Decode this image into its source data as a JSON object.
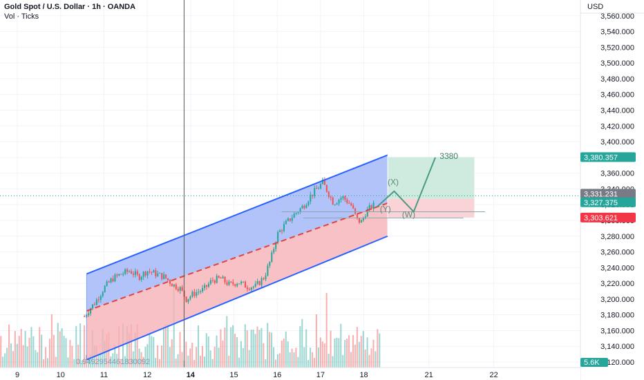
{
  "header": {
    "title": "Gold Spot / U.S. Dollar · 1h · OANDA",
    "subtitle": "Vol · Ticks"
  },
  "axis": {
    "currency": "USD"
  },
  "colors": {
    "up": "#26a69a",
    "down": "#ef5350",
    "channel_line": "#2962ff",
    "channel_fill_upper": "#9fb4f9",
    "channel_fill_lower": "#f6b1b7",
    "midline": "#e0433f",
    "target_fill": "#cfeadf",
    "stop_fill": "#f9d3d5",
    "projection": "#4a9a84",
    "tag_green": "#26a69a",
    "tag_gray": "#787b86",
    "tag_red": "#f23645"
  },
  "chart_data": {
    "type": "candlestick",
    "symbol": "Gold Spot / U.S. Dollar",
    "interval": "1h",
    "exchange": "OANDA",
    "y_range": [
      3113,
      3580
    ],
    "y_ticks": [
      3120,
      3140,
      3160,
      3180,
      3200,
      3220,
      3240,
      3260,
      3280,
      3300,
      3320,
      3340,
      3360,
      3380,
      3400,
      3420,
      3440,
      3460,
      3480,
      3500,
      3520,
      3540,
      3560
    ],
    "y_tick_labels": [
      "3,120.000",
      "3,140.000",
      "3,160.000",
      "3,180.000",
      "3,200.000",
      "3,220.000",
      "3,240.000",
      "3,260.000",
      "3,280.000",
      "3,300.000",
      "3,320.000",
      "3,340.000",
      "3,360.000",
      "3,380.000",
      "3,400.000",
      "3,420.000",
      "3,440.000",
      "3,460.000",
      "3,480.000",
      "3,500.000",
      "3,520.000",
      "3,540.000",
      "3,560.000"
    ],
    "x_range": [
      8.6,
      22.0
    ],
    "x_ticks": [
      {
        "day": 9,
        "label": "9",
        "bold": false
      },
      {
        "day": 10,
        "label": "10",
        "bold": false
      },
      {
        "day": 11,
        "label": "11",
        "bold": false
      },
      {
        "day": 12,
        "label": "12",
        "bold": false
      },
      {
        "day": 13,
        "label": "14",
        "bold": true
      },
      {
        "day": 14,
        "label": "15",
        "bold": false
      },
      {
        "day": 15,
        "label": "16",
        "bold": false
      },
      {
        "day": 16,
        "label": "17",
        "bold": false
      },
      {
        "day": 17,
        "label": "18",
        "bold": false
      },
      {
        "day": 18.5,
        "label": "21",
        "bold": false
      },
      {
        "day": 20,
        "label": "22",
        "bold": false
      }
    ],
    "price_path": [
      [
        10.55,
        3178
      ],
      [
        10.65,
        3186
      ],
      [
        10.8,
        3196
      ],
      [
        11.0,
        3214
      ],
      [
        11.2,
        3226
      ],
      [
        11.4,
        3232
      ],
      [
        11.6,
        3236
      ],
      [
        11.8,
        3228
      ],
      [
        12.0,
        3236
      ],
      [
        12.2,
        3232
      ],
      [
        12.4,
        3228
      ],
      [
        12.6,
        3218
      ],
      [
        12.75,
        3214
      ],
      [
        12.9,
        3200
      ],
      [
        13.1,
        3208
      ],
      [
        13.3,
        3212
      ],
      [
        13.5,
        3224
      ],
      [
        13.7,
        3226
      ],
      [
        13.9,
        3218
      ],
      [
        14.1,
        3222
      ],
      [
        14.3,
        3216
      ],
      [
        14.5,
        3216
      ],
      [
        14.7,
        3228
      ],
      [
        14.85,
        3250
      ],
      [
        15.0,
        3282
      ],
      [
        15.2,
        3296
      ],
      [
        15.4,
        3308
      ],
      [
        15.6,
        3318
      ],
      [
        15.75,
        3330
      ],
      [
        15.95,
        3342
      ],
      [
        16.05,
        3348
      ],
      [
        16.15,
        3338
      ],
      [
        16.3,
        3322
      ],
      [
        16.5,
        3330
      ],
      [
        16.7,
        3320
      ],
      [
        16.85,
        3300
      ],
      [
        16.95,
        3298
      ],
      [
        17.05,
        3311
      ],
      [
        17.15,
        3316
      ],
      [
        17.25,
        3320
      ]
    ],
    "volume_range_max": 60,
    "volume_label": "5.6K",
    "channel": {
      "upper": [
        [
          10.6,
          3232
        ],
        [
          17.55,
          3383
        ]
      ],
      "lower": [
        [
          10.6,
          3123
        ],
        [
          17.55,
          3280
        ]
      ],
      "mid": [
        [
          10.6,
          3185
        ],
        [
          17.55,
          3322
        ]
      ]
    },
    "position_box": {
      "x": [
        17.55,
        19.55
      ],
      "entry": 3327.375,
      "target": 3380.357,
      "stop": 3303.621
    },
    "horizontal_lines": [
      {
        "from": 15.1,
        "to": 19.8,
        "y": 3311
      },
      {
        "from": 15.6,
        "to": 19.3,
        "y": 3303
      }
    ],
    "current_price": 3331.231,
    "projection_path": [
      [
        17.3,
        3317
      ],
      [
        17.7,
        3337
      ],
      [
        18.15,
        3311
      ],
      [
        18.65,
        3380
      ]
    ],
    "annotations": [
      {
        "text": "3380",
        "x": 18.75,
        "y": 3378
      },
      {
        "text": "(X)",
        "x": 17.55,
        "y": 3345
      },
      {
        "text": "(W)",
        "x": 17.88,
        "y": 3304
      },
      {
        "text": "(Y)",
        "x": 17.37,
        "y": 3311
      }
    ],
    "vline_day": 12.85,
    "price_tags": [
      {
        "value": 3380.357,
        "label": "3,380.357",
        "color": "green"
      },
      {
        "value": 3331.231,
        "label": "3,331.231",
        "color": "gray"
      },
      {
        "value": 3327.375,
        "label": "3,327.375",
        "color": "green"
      },
      {
        "value": 3303.621,
        "label": "3,303.621",
        "color": "red"
      }
    ],
    "overlay_text": "0.9492954461830092"
  }
}
